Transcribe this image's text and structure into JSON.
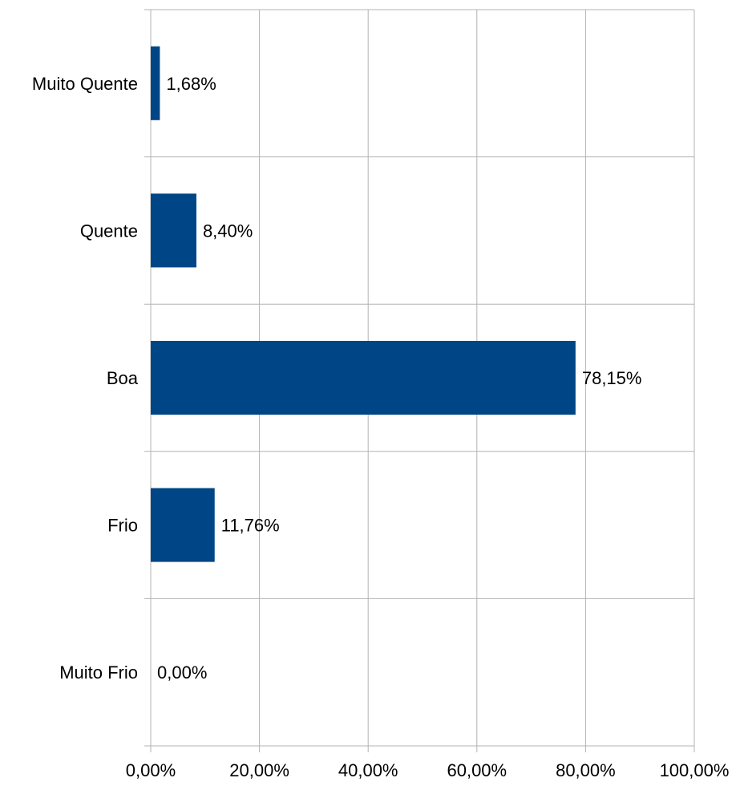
{
  "chart_data": {
    "type": "bar",
    "orientation": "horizontal",
    "categories": [
      "Muito Quente",
      "Quente",
      "Boa",
      "Frio",
      "Muito Frio"
    ],
    "values": [
      1.68,
      8.4,
      78.15,
      11.76,
      0.0
    ],
    "data_labels": [
      "1,68%",
      "8,40%",
      "78,15%",
      "11,76%",
      "0,00%"
    ],
    "xlim": [
      0,
      100
    ],
    "x_ticks": [
      0,
      20,
      40,
      60,
      80,
      100
    ],
    "x_tick_labels": [
      "0,00%",
      "20,00%",
      "40,00%",
      "60,00%",
      "80,00%",
      "100,00%"
    ],
    "grid": true,
    "bar_color": "#004586",
    "grid_color": "#b3b3b3"
  }
}
